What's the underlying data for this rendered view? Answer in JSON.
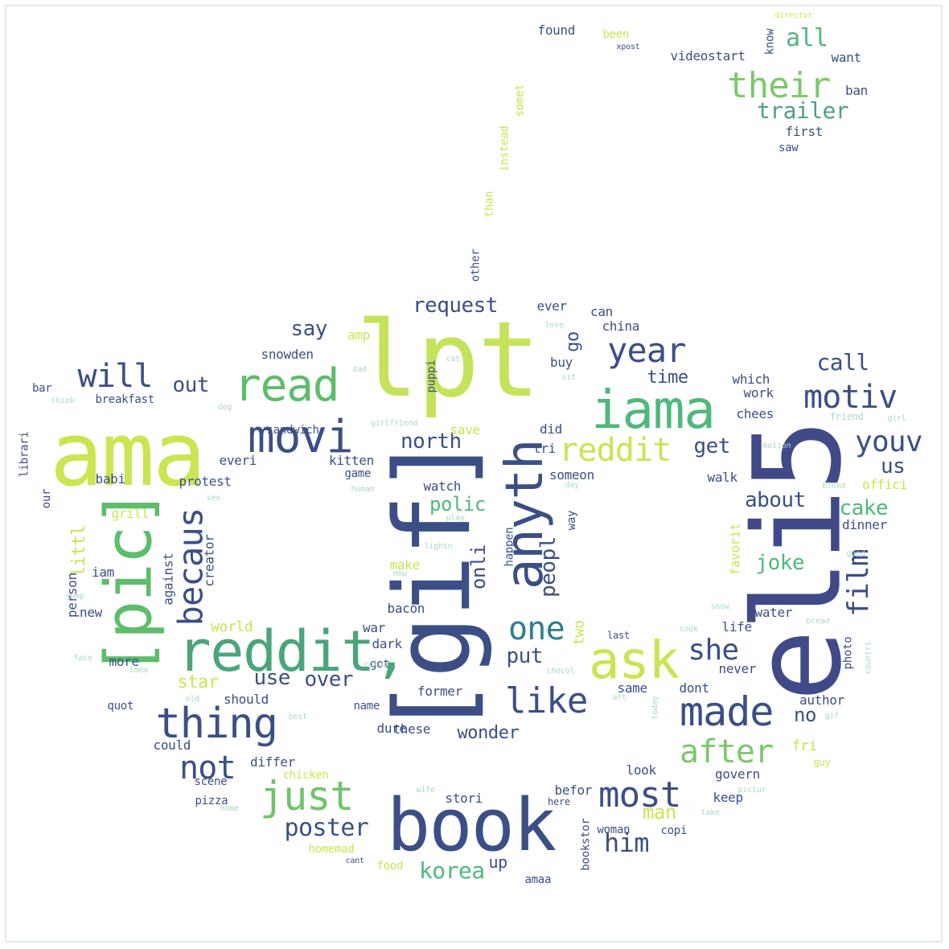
{
  "palette": {
    "dark_blue": "#3b4f86",
    "navy": "#414a88",
    "slate": "#3a5a8a",
    "teal": "#2c7f8e",
    "green": "#5cbd6a",
    "lime": "#c9e54f",
    "yellow": "#d9e85a",
    "pale": "#a8d8c8"
  },
  "words": [
    {
      "text": "lpt",
      "color": "#c5e35a"
    },
    {
      "text": "ama",
      "color": "#c9e54f"
    },
    {
      "text": "[gif]",
      "color": "#3b4f86"
    },
    {
      "text": "eli5",
      "color": "#414a88"
    },
    {
      "text": "book",
      "color": "#3b4f86"
    },
    {
      "text": "[pic]",
      "color": "#5cbd6a"
    },
    {
      "text": "reddit,",
      "color": "#4aa57a"
    },
    {
      "text": "iama",
      "color": "#4fb87c"
    },
    {
      "text": "anyth",
      "color": "#3b4f86"
    },
    {
      "text": "ask",
      "color": "#c9e54f"
    },
    {
      "text": "movi",
      "color": "#3b4f86"
    },
    {
      "text": "read",
      "color": "#5cbd6a"
    },
    {
      "text": "thing",
      "color": "#3b4f86"
    },
    {
      "text": "made",
      "color": "#3b4f86"
    },
    {
      "text": "just",
      "color": "#6fc46a"
    },
    {
      "text": "their",
      "color": "#7cc86a"
    },
    {
      "text": "year",
      "color": "#3b4f86"
    },
    {
      "text": "motiv",
      "color": "#3b4f86"
    },
    {
      "text": "reddit",
      "color": "#c9e54f"
    },
    {
      "text": "after",
      "color": "#7cc86a"
    },
    {
      "text": "most",
      "color": "#3b4f86"
    },
    {
      "text": "like",
      "color": "#3b4f86"
    },
    {
      "text": "one",
      "color": "#2c7f8e"
    },
    {
      "text": "becaus",
      "color": "#3b4f86"
    },
    {
      "text": "not",
      "color": "#3b4f86"
    },
    {
      "text": "will",
      "color": "#3b4f86"
    },
    {
      "text": "youv",
      "color": "#3b4f86"
    },
    {
      "text": "film",
      "color": "#3b4f86"
    },
    {
      "text": "she",
      "color": "#3b4f86"
    },
    {
      "text": "poster",
      "color": "#3b4f86"
    },
    {
      "text": "him",
      "color": "#3b4f86"
    },
    {
      "text": "korea",
      "color": "#4fb87c"
    },
    {
      "text": "all",
      "color": "#4fb87c"
    },
    {
      "text": "trailer",
      "color": "#4f9f86"
    },
    {
      "text": "call",
      "color": "#3b4f86"
    },
    {
      "text": "request",
      "color": "#3b4f86"
    },
    {
      "text": "say",
      "color": "#3b4f86"
    },
    {
      "text": "out",
      "color": "#3b4f86"
    },
    {
      "text": "north",
      "color": "#3b4f86"
    },
    {
      "text": "get",
      "color": "#3b4f86"
    },
    {
      "text": "us",
      "color": "#3b4f86"
    },
    {
      "text": "cake",
      "color": "#4fb87c"
    },
    {
      "text": "about",
      "color": "#3b4f86"
    },
    {
      "text": "joke",
      "color": "#4fb87c"
    },
    {
      "text": "polic",
      "color": "#4fb87c"
    },
    {
      "text": "peopl",
      "color": "#3b4f86"
    },
    {
      "text": "onli",
      "color": "#3b4f86"
    },
    {
      "text": "go",
      "color": "#3b4f86"
    },
    {
      "text": "put",
      "color": "#3b4f86"
    },
    {
      "text": "over",
      "color": "#3b4f86"
    },
    {
      "text": "use",
      "color": "#3b4f86"
    },
    {
      "text": "star",
      "color": "#c9e54f"
    },
    {
      "text": "man",
      "color": "#c9e54f"
    },
    {
      "text": "no",
      "color": "#3b4f86"
    },
    {
      "text": "wonder",
      "color": "#3b4f86"
    },
    {
      "text": "time",
      "color": "#3b4f86"
    },
    {
      "text": "littl",
      "color": "#c9e54f"
    },
    {
      "text": "up",
      "color": "#3b4f86"
    },
    {
      "text": "two",
      "color": "#c9e54f"
    },
    {
      "text": "world",
      "color": "#c9e54f"
    },
    {
      "text": "everi",
      "color": "#3b4f86"
    },
    {
      "text": "kitten",
      "color": "#3b4f86"
    },
    {
      "text": "breakfast",
      "color": "#3b4f86"
    },
    {
      "text": "snowden",
      "color": "#3b4f86"
    },
    {
      "text": "sandwich",
      "color": "#3b4f86"
    },
    {
      "text": "protest",
      "color": "#3b4f86"
    },
    {
      "text": "babi",
      "color": "#3b4f86"
    },
    {
      "text": "grill",
      "color": "#c9e54f"
    },
    {
      "text": "creator",
      "color": "#3b4f86"
    },
    {
      "text": "against",
      "color": "#3b4f86"
    },
    {
      "text": "person",
      "color": "#3b4f86"
    },
    {
      "text": "iam",
      "color": "#3b4f86"
    },
    {
      "text": "new",
      "color": "#3b4f86"
    },
    {
      "text": "more",
      "color": "#3b4f86"
    },
    {
      "text": "quot",
      "color": "#3b4f86"
    },
    {
      "text": "could",
      "color": "#3b4f86"
    },
    {
      "text": "should",
      "color": "#3b4f86"
    },
    {
      "text": "differ",
      "color": "#3b4f86"
    },
    {
      "text": "scene",
      "color": "#3b4f86"
    },
    {
      "text": "pizza",
      "color": "#3b4f86"
    },
    {
      "text": "chicken",
      "color": "#c9e54f"
    },
    {
      "text": "homemad",
      "color": "#c9e54f"
    },
    {
      "text": "food",
      "color": "#c9e54f"
    },
    {
      "text": "stori",
      "color": "#3b4f86"
    },
    {
      "text": "befor",
      "color": "#3b4f86"
    },
    {
      "text": "amaa",
      "color": "#3b4f86"
    },
    {
      "text": "bookstor",
      "color": "#3b4f86"
    },
    {
      "text": "woman",
      "color": "#3b4f86"
    },
    {
      "text": "copi",
      "color": "#3b4f86"
    },
    {
      "text": "keep",
      "color": "#3b4f86"
    },
    {
      "text": "govern",
      "color": "#3b4f86"
    },
    {
      "text": "look",
      "color": "#3b4f86"
    },
    {
      "text": "fri",
      "color": "#c9e54f"
    },
    {
      "text": "dont",
      "color": "#3b4f86"
    },
    {
      "text": "same",
      "color": "#3b4f86"
    },
    {
      "text": "never",
      "color": "#3b4f86"
    },
    {
      "text": "author",
      "color": "#3b4f86"
    },
    {
      "text": "photo",
      "color": "#3b4f86"
    },
    {
      "text": "water",
      "color": "#3b4f86"
    },
    {
      "text": "life",
      "color": "#3b4f86"
    },
    {
      "text": "favorit",
      "color": "#c9e54f"
    },
    {
      "text": "dinner",
      "color": "#3b4f86"
    },
    {
      "text": "offici",
      "color": "#c9e54f"
    },
    {
      "text": "walk",
      "color": "#3b4f86"
    },
    {
      "text": "chees",
      "color": "#3b4f86"
    },
    {
      "text": "work",
      "color": "#3b4f86"
    },
    {
      "text": "which",
      "color": "#3b4f86"
    },
    {
      "text": "china",
      "color": "#3b4f86"
    },
    {
      "text": "can",
      "color": "#3b4f86"
    },
    {
      "text": "ever",
      "color": "#3b4f86"
    },
    {
      "text": "buy",
      "color": "#3b4f86"
    },
    {
      "text": "did",
      "color": "#3b4f86"
    },
    {
      "text": "tri",
      "color": "#3b4f86"
    },
    {
      "text": "someon",
      "color": "#3b4f86"
    },
    {
      "text": "watch",
      "color": "#3b4f86"
    },
    {
      "text": "way",
      "color": "#3b4f86"
    },
    {
      "text": "happen",
      "color": "#3b4f86"
    },
    {
      "text": "save",
      "color": "#c9e54f"
    },
    {
      "text": "puppi",
      "color": "#3b4f86"
    },
    {
      "text": "amp",
      "color": "#c9e54f"
    },
    {
      "text": "game",
      "color": "#3b4f86"
    },
    {
      "text": "make",
      "color": "#c9e54f"
    },
    {
      "text": "bacon",
      "color": "#3b4f86"
    },
    {
      "text": "war",
      "color": "#3b4f86"
    },
    {
      "text": "dark",
      "color": "#3b4f86"
    },
    {
      "text": "got",
      "color": "#3b4f86"
    },
    {
      "text": "dure",
      "color": "#3b4f86"
    },
    {
      "text": "former",
      "color": "#3b4f86"
    },
    {
      "text": "name",
      "color": "#3b4f86"
    },
    {
      "text": "these",
      "color": "#3b4f86"
    },
    {
      "text": "found",
      "color": "#3b4f86"
    },
    {
      "text": "been",
      "color": "#c9e54f"
    },
    {
      "text": "videostart",
      "color": "#3b4f86"
    },
    {
      "text": "know",
      "color": "#3b4f86"
    },
    {
      "text": "want",
      "color": "#3b4f86"
    },
    {
      "text": "ban",
      "color": "#3b4f86"
    },
    {
      "text": "first",
      "color": "#3b4f86"
    },
    {
      "text": "saw",
      "color": "#3b4f86"
    },
    {
      "text": "xpost",
      "color": "#3b4f86"
    },
    {
      "text": "director",
      "color": "#c9e54f"
    },
    {
      "text": "instead",
      "color": "#c9e54f"
    },
    {
      "text": "than",
      "color": "#c9e54f"
    },
    {
      "text": "other",
      "color": "#3b4f86"
    },
    {
      "text": "somet",
      "color": "#c9e54f"
    },
    {
      "text": "librari",
      "color": "#3b4f86"
    },
    {
      "text": "our",
      "color": "#3b4f86"
    },
    {
      "text": "bar",
      "color": "#3b4f86"
    },
    {
      "text": "think",
      "color": "#a8d8c8"
    },
    {
      "text": "dog",
      "color": "#a8d8c8"
    },
    {
      "text": "girlfriend",
      "color": "#a8d8c8"
    },
    {
      "text": "friend",
      "color": "#a8d8c8"
    },
    {
      "text": "girl",
      "color": "#a8d8c8"
    },
    {
      "text": "motion",
      "color": "#a8d8c8"
    },
    {
      "text": "blond",
      "color": "#a8d8c8"
    },
    {
      "text": "good",
      "color": "#a8d8c8"
    },
    {
      "text": "last",
      "color": "#3b4f86"
    },
    {
      "text": "cook",
      "color": "#a8d8c8"
    },
    {
      "text": "show",
      "color": "#a8d8c8"
    },
    {
      "text": "bread",
      "color": "#a8d8c8"
    },
    {
      "text": "countri",
      "color": "#a8d8c8"
    },
    {
      "text": "today",
      "color": "#a8d8c8"
    },
    {
      "text": "color",
      "color": "#a8d8c8"
    },
    {
      "text": "best",
      "color": "#a8d8c8"
    },
    {
      "text": "old",
      "color": "#a8d8c8"
    },
    {
      "text": "wife",
      "color": "#a8d8c8"
    },
    {
      "text": "here",
      "color": "#3b4f86"
    },
    {
      "text": "take",
      "color": "#a8d8c8"
    },
    {
      "text": "cant",
      "color": "#3b4f86"
    },
    {
      "text": "home",
      "color": "#a8d8c8"
    },
    {
      "text": "guy",
      "color": "#c9e54f"
    },
    {
      "text": "pictur",
      "color": "#a8d8c8"
    },
    {
      "text": "gif",
      "color": "#a8d8c8"
    },
    {
      "text": "art",
      "color": "#a8d8c8"
    },
    {
      "text": "chocol",
      "color": "#a8d8c8"
    },
    {
      "text": "human",
      "color": "#a8d8c8"
    },
    {
      "text": "play",
      "color": "#a8d8c8"
    },
    {
      "text": "lightn",
      "color": "#a8d8c8"
    },
    {
      "text": "now",
      "color": "#a8d8c8"
    },
    {
      "text": "dad",
      "color": "#a8d8c8"
    },
    {
      "text": "cat",
      "color": "#a8d8c8"
    },
    {
      "text": "love",
      "color": "#a8d8c8"
    },
    {
      "text": "sit",
      "color": "#a8d8c8"
    },
    {
      "text": "day",
      "color": "#a8d8c8"
    },
    {
      "text": "face",
      "color": "#a8d8c8"
    },
    {
      "text": "jump",
      "color": "#a8d8c8"
    },
    {
      "text": "sex",
      "color": "#a8d8c8"
    },
    {
      "text": "idea",
      "color": "#a8d8c8"
    }
  ]
}
